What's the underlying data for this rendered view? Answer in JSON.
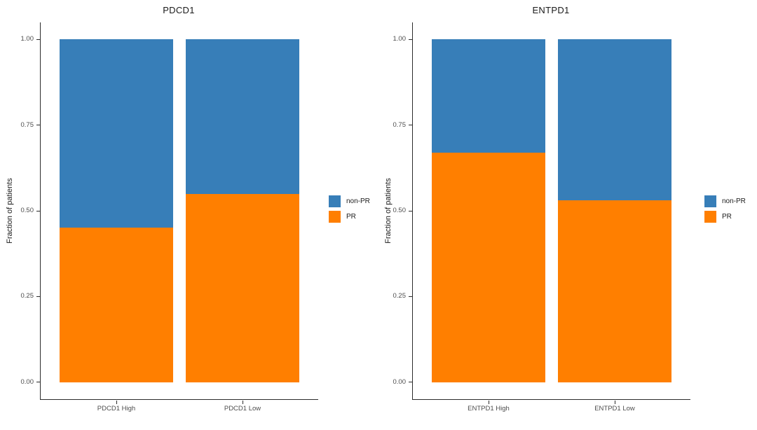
{
  "figure": {
    "background": "#FFFFFF"
  },
  "styles": {
    "non_pr_color": "#377EB8",
    "pr_color": "#FF7F00",
    "axis_line_color": "#2B2B2B",
    "tick_label_color": "#4D4D4D",
    "title_color": "#1A1A1A"
  },
  "legend": {
    "items": [
      {
        "label": "non-PR",
        "color": "#377EB8"
      },
      {
        "label": "PR",
        "color": "#FF7F00"
      }
    ]
  },
  "chart_data": [
    {
      "type": "bar",
      "stacked": true,
      "title": "PDCD1",
      "xlabel": "",
      "ylabel": "Fraction of patients",
      "categories": [
        "PDCD1 High",
        "PDCD1 Low"
      ],
      "series": [
        {
          "name": "PR",
          "color": "#FF7F00",
          "values": [
            0.45,
            0.55
          ]
        },
        {
          "name": "non-PR",
          "color": "#377EB8",
          "values": [
            0.55,
            0.45
          ]
        }
      ],
      "ylim": [
        0,
        1
      ],
      "yticks": [
        0,
        0.25,
        0.5,
        0.75,
        1
      ],
      "ytick_labels": [
        "0.00",
        "0.25",
        "0.50",
        "0.75",
        "1.00"
      ],
      "grid": false,
      "legend_position": "right"
    },
    {
      "type": "bar",
      "stacked": true,
      "title": "ENTPD1",
      "xlabel": "",
      "ylabel": "Fraction of patients",
      "categories": [
        "ENTPD1 High",
        "ENTPD1 Low"
      ],
      "series": [
        {
          "name": "PR",
          "color": "#FF7F00",
          "values": [
            0.67,
            0.53
          ]
        },
        {
          "name": "non-PR",
          "color": "#377EB8",
          "values": [
            0.33,
            0.47
          ]
        }
      ],
      "ylim": [
        0,
        1
      ],
      "yticks": [
        0,
        0.25,
        0.5,
        0.75,
        1
      ],
      "ytick_labels": [
        "0.00",
        "0.25",
        "0.50",
        "0.75",
        "1.00"
      ],
      "grid": false,
      "legend_position": "right"
    }
  ]
}
